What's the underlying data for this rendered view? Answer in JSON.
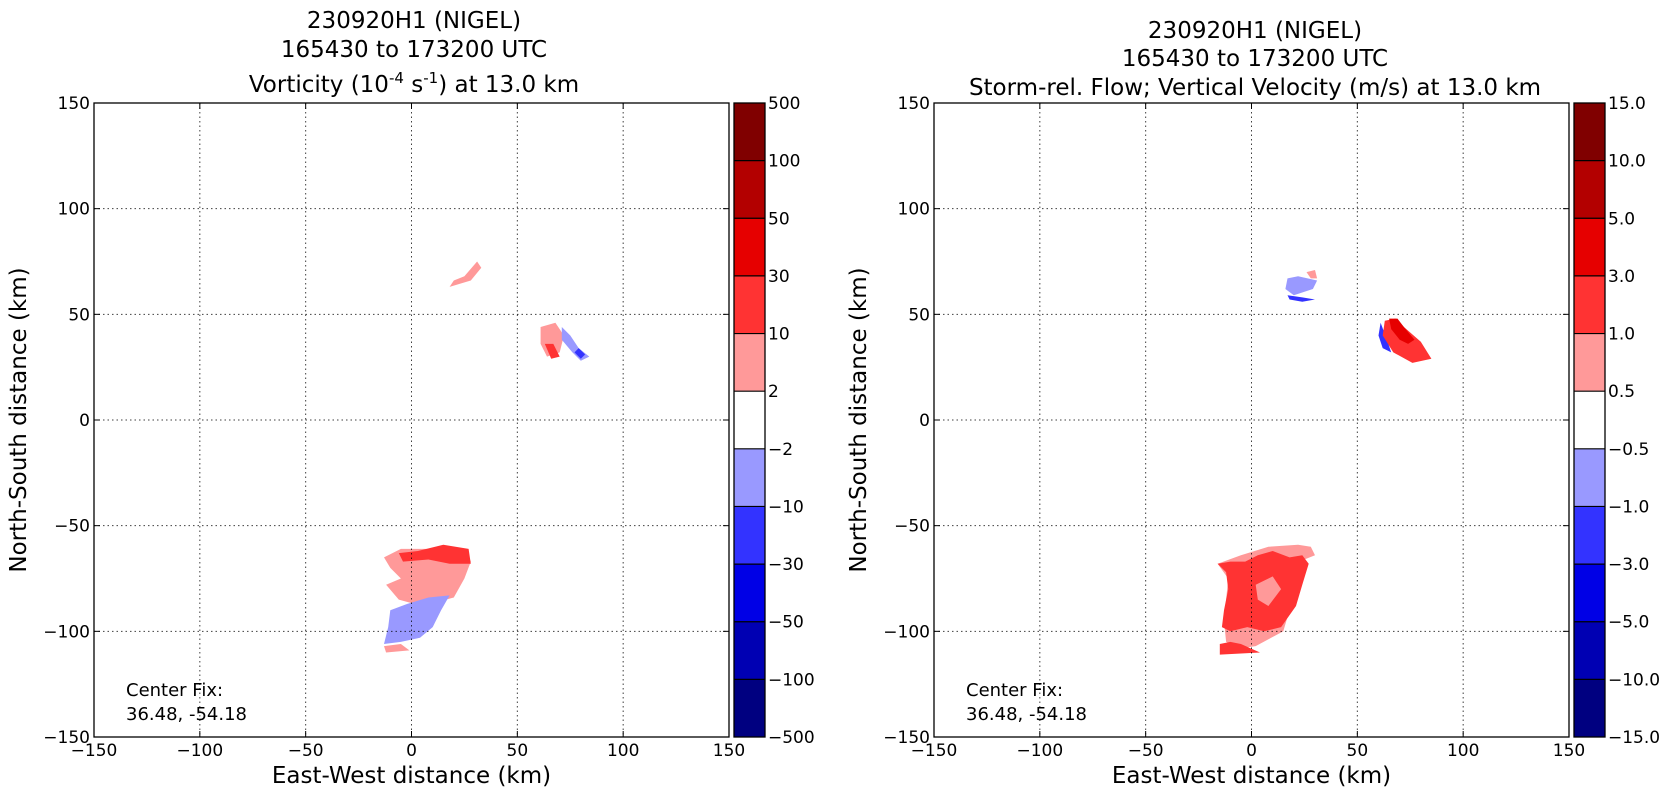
{
  "chart_data": [
    {
      "type": "heatmap",
      "title_lines": [
        "230920H1 (NIGEL)",
        "165430 to 173200 UTC"
      ],
      "title_line3": {
        "prefix": "Vorticity (10",
        "sup1": "-4",
        "mid": " s",
        "sup2": "-1",
        "suffix": ") at 13.0 km"
      },
      "xlabel": "East-West distance (km)",
      "ylabel": "North-South distance (km)",
      "xlim": [
        -150,
        150
      ],
      "ylim": [
        -150,
        150
      ],
      "xticks": [
        "−150",
        "−100",
        "−50",
        "0",
        "50",
        "100",
        "150"
      ],
      "yticks": [
        "150",
        "100",
        "50",
        "0",
        "−50",
        "−100",
        "−150"
      ],
      "grid": true,
      "annotation": [
        "Center Fix:",
        "36.48, -54.18"
      ],
      "colorbar": {
        "labels": [
          "500",
          "100",
          "50",
          "30",
          "10",
          "2",
          "−2",
          "−10",
          "−30",
          "−50",
          "−100",
          "−500"
        ],
        "colors": [
          "#800000",
          "#b30000",
          "#e60000",
          "#ff3333",
          "#ff9999",
          "#ffffff",
          "#9999ff",
          "#3333ff",
          "#0000e6",
          "#0000b3",
          "#000080"
        ]
      },
      "regions": [
        {
          "bin": "2 to 10",
          "color": "#ff9999",
          "points": [
            [
              18,
              63
            ],
            [
              28,
              66
            ],
            [
              33,
              72
            ],
            [
              31,
              75
            ],
            [
              25,
              68
            ],
            [
              20,
              66
            ]
          ]
        },
        {
          "bin": "2 to 10",
          "color": "#ff9999",
          "points": [
            [
              61,
              44
            ],
            [
              68,
              46
            ],
            [
              72,
              40
            ],
            [
              70,
              32
            ],
            [
              64,
              30
            ],
            [
              61,
              36
            ]
          ]
        },
        {
          "bin": "10 to 30",
          "color": "#ff3333",
          "points": [
            [
              63,
              36
            ],
            [
              67,
              36
            ],
            [
              70,
              30
            ],
            [
              66,
              29
            ]
          ]
        },
        {
          "bin": "-2 to -10",
          "color": "#9999ff",
          "points": [
            [
              71,
              44
            ],
            [
              75,
              40
            ],
            [
              79,
              34
            ],
            [
              84,
              30
            ],
            [
              80,
              28
            ],
            [
              76,
              32
            ],
            [
              71,
              38
            ]
          ]
        },
        {
          "bin": "-10 to -30",
          "color": "#3333ff",
          "points": [
            [
              79,
              34
            ],
            [
              82,
              31
            ],
            [
              80,
              29
            ],
            [
              77,
              32
            ]
          ]
        },
        {
          "bin": "2 to 10",
          "color": "#ff9999",
          "points": [
            [
              -13,
              -65
            ],
            [
              -5,
              -61
            ],
            [
              10,
              -61
            ],
            [
              26,
              -62
            ],
            [
              28,
              -67
            ],
            [
              25,
              -75
            ],
            [
              20,
              -84
            ],
            [
              5,
              -88
            ],
            [
              -6,
              -85
            ],
            [
              -12,
              -78
            ],
            [
              -5,
              -75
            ],
            [
              -10,
              -70
            ]
          ]
        },
        {
          "bin": "10 to 30",
          "color": "#ff3333",
          "points": [
            [
              -6,
              -63
            ],
            [
              3,
              -62
            ],
            [
              15,
              -59
            ],
            [
              27,
              -61
            ],
            [
              28,
              -68
            ],
            [
              18,
              -68
            ],
            [
              8,
              -66
            ],
            [
              -4,
              -67
            ]
          ]
        },
        {
          "bin": "-2 to -10",
          "color": "#9999ff",
          "points": [
            [
              -10,
              -90
            ],
            [
              -2,
              -87
            ],
            [
              8,
              -84
            ],
            [
              18,
              -83
            ],
            [
              14,
              -90
            ],
            [
              10,
              -98
            ],
            [
              4,
              -103
            ],
            [
              -5,
              -105
            ],
            [
              -13,
              -106
            ],
            [
              -11,
              -98
            ]
          ]
        },
        {
          "bin": "2 to 10",
          "color": "#ff9999",
          "points": [
            [
              -13,
              -107
            ],
            [
              -5,
              -106
            ],
            [
              -1,
              -109
            ],
            [
              -12,
              -110
            ]
          ]
        }
      ]
    },
    {
      "type": "heatmap",
      "title_lines": [
        "230920H1 (NIGEL)",
        "165430 to 173200 UTC",
        "Storm-rel. Flow; Vertical Velocity (m/s) at 13.0 km"
      ],
      "xlabel": "East-West distance (km)",
      "ylabel": "North-South distance (km)",
      "xlim": [
        -150,
        150
      ],
      "ylim": [
        -150,
        150
      ],
      "xticks": [
        "−150",
        "−100",
        "−50",
        "0",
        "50",
        "100",
        "150"
      ],
      "yticks": [
        "150",
        "100",
        "50",
        "0",
        "−50",
        "−100",
        "−150"
      ],
      "grid": true,
      "annotation": [
        "Center Fix:",
        "36.48, -54.18"
      ],
      "colorbar": {
        "labels": [
          "15.0",
          "10.0",
          "5.0",
          "3.0",
          "1.0",
          "0.5",
          "−0.5",
          "−1.0",
          "−3.0",
          "−5.0",
          "−10.0",
          "−15.0"
        ],
        "colors": [
          "#800000",
          "#b30000",
          "#e60000",
          "#ff3333",
          "#ff9999",
          "#ffffff",
          "#9999ff",
          "#3333ff",
          "#0000e6",
          "#0000b3",
          "#000080"
        ]
      },
      "regions": [
        {
          "bin": "0.5 to 1.0",
          "color": "#ff9999",
          "points": [
            [
              26,
              70
            ],
            [
              30,
              71
            ],
            [
              31,
              67
            ],
            [
              28,
              67
            ]
          ]
        },
        {
          "bin": "0.5 to 1.0",
          "color": "#ff9999",
          "points": [
            [
              17,
              63
            ],
            [
              22,
              65
            ],
            [
              26,
              62
            ],
            [
              22,
              60
            ]
          ]
        },
        {
          "bin": "1.0 to 3.0",
          "color": "#ff3333",
          "points": [
            [
              20,
              63
            ],
            [
              24,
              63
            ],
            [
              22,
              61
            ]
          ]
        },
        {
          "bin": "-0.5 to -1.0",
          "color": "#9999ff",
          "points": [
            [
              17,
              67
            ],
            [
              22,
              68
            ],
            [
              31,
              66
            ],
            [
              29,
              62
            ],
            [
              20,
              59
            ],
            [
              16,
              62
            ]
          ]
        },
        {
          "bin": "-1.0 to -3.0",
          "color": "#3333ff",
          "points": [
            [
              17,
              59
            ],
            [
              24,
              58
            ],
            [
              30,
              57
            ],
            [
              24,
              56
            ],
            [
              18,
              57
            ]
          ]
        },
        {
          "bin": "-1.0 to -3.0",
          "color": "#3333ff",
          "points": [
            [
              61,
              46
            ],
            [
              64,
              38
            ],
            [
              66,
              32
            ],
            [
              62,
              34
            ],
            [
              60,
              40
            ]
          ]
        },
        {
          "bin": "1.0 to 3.0",
          "color": "#ff3333",
          "points": [
            [
              63,
              47
            ],
            [
              68,
              48
            ],
            [
              72,
              44
            ],
            [
              80,
              37
            ],
            [
              85,
              29
            ],
            [
              76,
              27
            ],
            [
              67,
              32
            ],
            [
              62,
              40
            ]
          ]
        },
        {
          "bin": "3.0 to 5.0",
          "color": "#e60000",
          "points": [
            [
              65,
              48
            ],
            [
              69,
              48
            ],
            [
              72,
              44
            ],
            [
              77,
              38
            ],
            [
              74,
              36
            ],
            [
              70,
              38
            ],
            [
              66,
              43
            ]
          ]
        },
        {
          "bin": "0.5 to 1.0",
          "color": "#ff9999",
          "points": [
            [
              -16,
              -68
            ],
            [
              -5,
              -64
            ],
            [
              8,
              -60
            ],
            [
              22,
              -59
            ],
            [
              28,
              -60
            ],
            [
              30,
              -64
            ],
            [
              25,
              -66
            ],
            [
              15,
              -100
            ],
            [
              2,
              -107
            ],
            [
              -5,
              -108
            ],
            [
              -12,
              -105
            ],
            [
              -13,
              -95
            ],
            [
              -12,
              -85
            ],
            [
              -11,
              -75
            ]
          ]
        },
        {
          "bin": "1.0 to 3.0",
          "color": "#ff3333",
          "points": [
            [
              -16,
              -68
            ],
            [
              -10,
              -67
            ],
            [
              -3,
              -67
            ],
            [
              3,
              -64
            ],
            [
              10,
              -62
            ],
            [
              18,
              -65
            ],
            [
              24,
              -64
            ],
            [
              27,
              -68
            ],
            [
              24,
              -78
            ],
            [
              21,
              -88
            ],
            [
              14,
              -98
            ],
            [
              6,
              -100
            ],
            [
              -2,
              -98
            ],
            [
              -10,
              -100
            ],
            [
              -14,
              -98
            ],
            [
              -13,
              -90
            ],
            [
              -11,
              -80
            ],
            [
              -12,
              -72
            ]
          ]
        },
        {
          "bin": "0.5 to 1.0",
          "color": "#ff9999",
          "points": [
            [
              2,
              -78
            ],
            [
              10,
              -74
            ],
            [
              14,
              -80
            ],
            [
              8,
              -88
            ],
            [
              3,
              -85
            ]
          ]
        },
        {
          "bin": "1.0 to 3.0",
          "color": "#ff3333",
          "points": [
            [
              -15,
              -106
            ],
            [
              -10,
              -105
            ],
            [
              -5,
              -106
            ],
            [
              4,
              -110
            ],
            [
              -15,
              -111
            ]
          ]
        }
      ]
    }
  ]
}
